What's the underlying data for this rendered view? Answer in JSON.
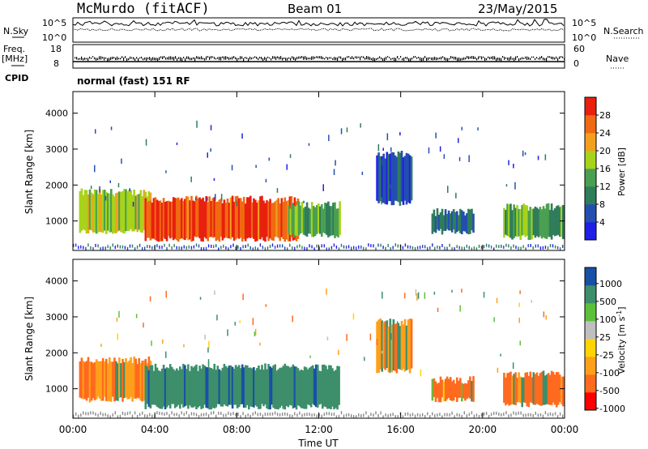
{
  "header": {
    "station": "McMurdo (fitACF)",
    "beam": "Beam 01",
    "date": "23/May/2015"
  },
  "status": {
    "left_labels": [
      "N.Sky",
      "Freq.",
      "[MHz]",
      "CPID"
    ],
    "right_labels": [
      "N.Search",
      "Nave"
    ],
    "noise_ticks_left": [
      "10^5",
      "10^0"
    ],
    "noise_ticks_right": [
      "10^5",
      "10^0"
    ],
    "freq_ticks": [
      "18",
      "8"
    ],
    "nave_ticks": [
      "60",
      "0"
    ],
    "cpid_text": "normal (fast) 151 RF"
  },
  "colors": {
    "power": [
      "#1f1fe8",
      "#244fb0",
      "#2f7d5a",
      "#4aa050",
      "#a8d31a",
      "#f3a020",
      "#f06a12",
      "#e8200e"
    ],
    "velocity": [
      "#ff0000",
      "#ff6a1f",
      "#ff9f1a",
      "#ffd400",
      "#bfbfbf",
      "#5cc13a",
      "#3c8f6a",
      "#1a4fa8"
    ],
    "ground": "#8a8a8a"
  },
  "chart_data": [
    {
      "type": "heatmap",
      "title": "Power",
      "xlabel": "",
      "ylabel": "Slant Range [km]",
      "x_ticks": [
        "00:00",
        "04:00",
        "08:00",
        "12:00",
        "16:00",
        "20:00",
        "00:00"
      ],
      "xlim_hours": [
        0,
        24
      ],
      "y_ticks": [
        "1000",
        "2000",
        "3000",
        "4000"
      ],
      "ylim": [
        180,
        4600
      ],
      "colorbar": {
        "label": "Power [dB]",
        "ticks": [
          "4",
          "8",
          "12",
          "16",
          "20",
          "24",
          "28"
        ],
        "range": [
          0,
          32
        ]
      },
      "regions": [
        {
          "t0": 0.3,
          "t1": 3.8,
          "r0": 700,
          "r1": 1750,
          "level": 18
        },
        {
          "t0": 3.5,
          "t1": 11.0,
          "r0": 500,
          "r1": 1550,
          "level": 28
        },
        {
          "t0": 10.5,
          "t1": 13.0,
          "r0": 600,
          "r1": 1400,
          "level": 14
        },
        {
          "t0": 14.8,
          "t1": 16.5,
          "r0": 1500,
          "r1": 2800,
          "level": 6
        },
        {
          "t0": 17.5,
          "t1": 19.5,
          "r0": 700,
          "r1": 1200,
          "level": 7
        },
        {
          "t0": 21.0,
          "t1": 23.9,
          "r0": 550,
          "r1": 1350,
          "level": 14
        }
      ]
    },
    {
      "type": "heatmap",
      "title": "Velocity",
      "xlabel": "Time UT",
      "ylabel": "Slant Range [km]",
      "x_ticks": [
        "00:00",
        "04:00",
        "08:00",
        "12:00",
        "16:00",
        "20:00",
        "00:00"
      ],
      "xlim_hours": [
        0,
        24
      ],
      "y_ticks": [
        "1000",
        "2000",
        "3000",
        "4000"
      ],
      "ylim": [
        180,
        4600
      ],
      "colorbar": {
        "label": "Velocity [m s^-1]",
        "ticks": [
          "1000",
          "500",
          "100",
          "25",
          "-25",
          "-100",
          "-500",
          "-1000"
        ]
      },
      "regions": [
        {
          "t0": 0.3,
          "t1": 3.8,
          "r0": 700,
          "r1": 1750,
          "value": -100
        },
        {
          "t0": 3.5,
          "t1": 13.0,
          "r0": 500,
          "r1": 1550,
          "value": 300
        },
        {
          "t0": 14.8,
          "t1": 16.5,
          "r0": 1500,
          "r1": 2800,
          "value": -80
        },
        {
          "t0": 17.5,
          "t1": 19.5,
          "r0": 700,
          "r1": 1200,
          "value": -300
        },
        {
          "t0": 21.0,
          "t1": 23.9,
          "r0": 550,
          "r1": 1350,
          "value": -150
        }
      ]
    }
  ]
}
